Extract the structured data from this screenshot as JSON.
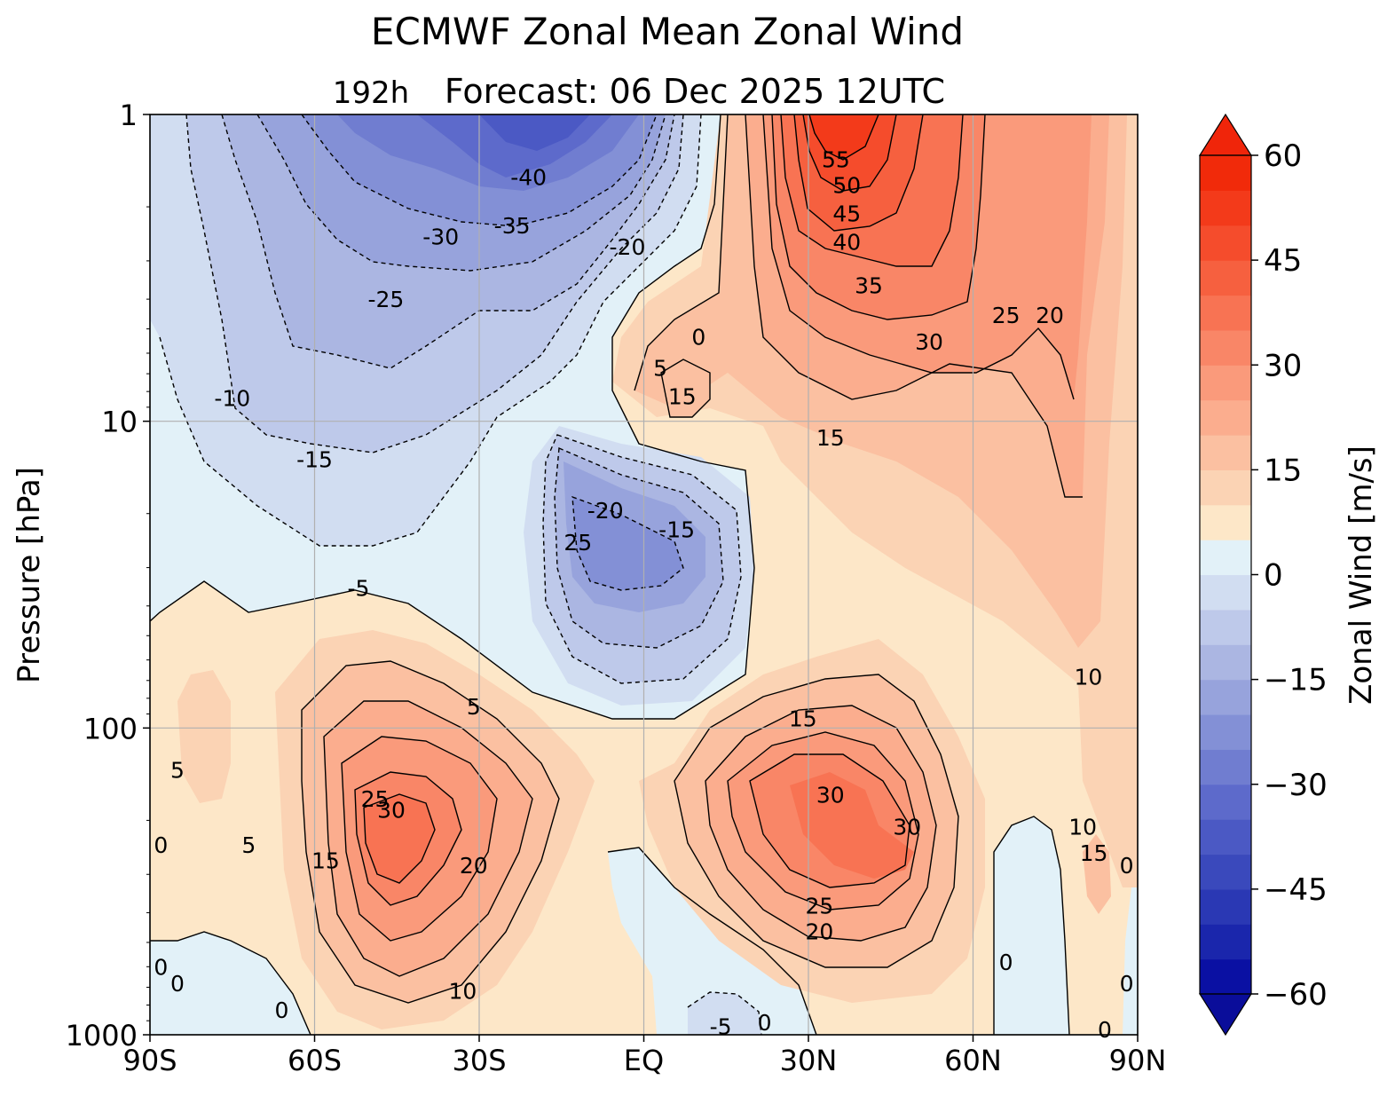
{
  "chart_data": {
    "type": "contour",
    "title": "ECMWF Zonal Mean Zonal Wind",
    "subtitle_lead": "192h",
    "subtitle": "Forecast:  06 Dec 2025  12UTC",
    "xlabel": "",
    "ylabel": "Pressure [hPa]",
    "x_ticks": [
      "90S",
      "60S",
      "30S",
      "EQ",
      "30N",
      "60N",
      "90N"
    ],
    "x_tick_values": [
      -90,
      -60,
      -30,
      0,
      30,
      60,
      90
    ],
    "xlim": [
      -90,
      90
    ],
    "y_scale": "log",
    "y_inverted": true,
    "ylim": [
      1000,
      1
    ],
    "y_ticks": [
      "1",
      "10",
      "100",
      "1000"
    ],
    "y_tick_values": [
      1,
      10,
      100,
      1000
    ],
    "grid": true,
    "colorbar": {
      "label": "Zonal Wind [m/s]",
      "range": [
        -60,
        60
      ],
      "interval": 5,
      "extend": "both",
      "ticks": [
        "−60",
        "−45",
        "−30",
        "−15",
        "0",
        "15",
        "30",
        "45",
        "60"
      ],
      "tick_values": [
        -60,
        -45,
        -30,
        -15,
        0,
        15,
        30,
        45,
        60
      ],
      "colors": [
        "#0a10a3",
        "#1a26ac",
        "#2a38b4",
        "#3a49bc",
        "#4b59c4",
        "#5d6acb",
        "#707dd0",
        "#8390d6",
        "#97a3dc",
        "#abb6e2",
        "#bec9ea",
        "#d1ddf1",
        "#e2f1f8",
        "#fde7c8",
        "#fbd3b4",
        "#fbc0a1",
        "#fbad8e",
        "#fa9a7b",
        "#f98667",
        "#f87353",
        "#f6603f",
        "#f54c2c",
        "#f33a1a",
        "#f12a0a"
      ],
      "neg_extend_color": "#0a0d9a",
      "pos_extend_color": "#f0250a"
    },
    "contour_levels": [
      -40,
      -35,
      -30,
      -25,
      -20,
      -15,
      -10,
      -5,
      0,
      5,
      10,
      15,
      20,
      25,
      30,
      35,
      40,
      45,
      50,
      55
    ],
    "features": [
      {
        "name": "southern stratospheric easterly core",
        "lat": -20,
        "p": 1,
        "value": -40
      },
      {
        "name": "northern stratospheric westerly jet",
        "lat": 35,
        "p": 1,
        "value": 55
      },
      {
        "name": "tropical easterly",
        "lat": -10,
        "p": 30,
        "value": -25
      },
      {
        "name": "southern subtropical jet",
        "lat": -43,
        "p": 250,
        "value": 30
      },
      {
        "name": "northern subtropical jet",
        "lat": 37,
        "p": 200,
        "value": 30
      },
      {
        "name": "tropical surface easterlies",
        "lat": 0,
        "p": 800,
        "value": -5
      }
    ],
    "contour_labels": [
      {
        "text": "-40",
        "lat": -21,
        "p": 1.6
      },
      {
        "text": "-35",
        "lat": -24,
        "p": 2.3
      },
      {
        "text": "-30",
        "lat": -37,
        "p": 2.5
      },
      {
        "text": "-20",
        "lat": -3,
        "p": 2.7
      },
      {
        "text": "-25",
        "lat": -47,
        "p": 4.0
      },
      {
        "text": "0",
        "lat": 10,
        "p": 5.3
      },
      {
        "text": "5",
        "lat": 3,
        "p": 6.7
      },
      {
        "text": "15",
        "lat": 7,
        "p": 8.3
      },
      {
        "text": "-10",
        "lat": -75,
        "p": 8.4
      },
      {
        "text": "15",
        "lat": 34,
        "p": 11.3
      },
      {
        "text": "-15",
        "lat": -60,
        "p": 13.3
      },
      {
        "text": "-20",
        "lat": -7,
        "p": 19.5
      },
      {
        "text": "-15",
        "lat": 6,
        "p": 22.5
      },
      {
        "text": "25",
        "lat": -12,
        "p": 24.8
      },
      {
        "text": "-5",
        "lat": -52,
        "p": 35
      },
      {
        "text": "5",
        "lat": -31,
        "p": 85
      },
      {
        "text": "15",
        "lat": 29,
        "p": 93
      },
      {
        "text": "10",
        "lat": 81,
        "p": 68
      },
      {
        "text": "55",
        "lat": 35,
        "p": 1.4
      },
      {
        "text": "50",
        "lat": 37,
        "p": 1.7
      },
      {
        "text": "45",
        "lat": 37,
        "p": 2.1
      },
      {
        "text": "40",
        "lat": 37,
        "p": 2.6
      },
      {
        "text": "35",
        "lat": 41,
        "p": 3.6
      },
      {
        "text": "25",
        "lat": 66,
        "p": 4.5
      },
      {
        "text": "20",
        "lat": 74,
        "p": 4.5
      },
      {
        "text": "30",
        "lat": 52,
        "p": 5.5
      },
      {
        "text": "5",
        "lat": -85,
        "p": 137
      },
      {
        "text": "25",
        "lat": -49,
        "p": 170
      },
      {
        "text": "30",
        "lat": -46,
        "p": 185
      },
      {
        "text": "30",
        "lat": 34,
        "p": 165
      },
      {
        "text": "30",
        "lat": 48,
        "p": 210
      },
      {
        "text": "10",
        "lat": 80,
        "p": 210
      },
      {
        "text": "15",
        "lat": 82,
        "p": 255
      },
      {
        "text": "0",
        "lat": 88,
        "p": 280
      },
      {
        "text": "0",
        "lat": -88,
        "p": 240
      },
      {
        "text": "5",
        "lat": -72,
        "p": 240
      },
      {
        "text": "15",
        "lat": -58,
        "p": 270
      },
      {
        "text": "20",
        "lat": -31,
        "p": 280
      },
      {
        "text": "25",
        "lat": 32,
        "p": 380
      },
      {
        "text": "20",
        "lat": 32,
        "p": 460
      },
      {
        "text": "0",
        "lat": 66,
        "p": 580
      },
      {
        "text": "10",
        "lat": -33,
        "p": 720
      },
      {
        "text": "0",
        "lat": -88,
        "p": 600
      },
      {
        "text": "0",
        "lat": -85,
        "p": 680
      },
      {
        "text": "0",
        "lat": 88,
        "p": 680
      },
      {
        "text": "0",
        "lat": -66,
        "p": 830
      },
      {
        "text": "-5",
        "lat": 14,
        "p": 940
      },
      {
        "text": "0",
        "lat": 22,
        "p": 910
      },
      {
        "text": "0",
        "lat": 84,
        "p": 960
      }
    ]
  }
}
